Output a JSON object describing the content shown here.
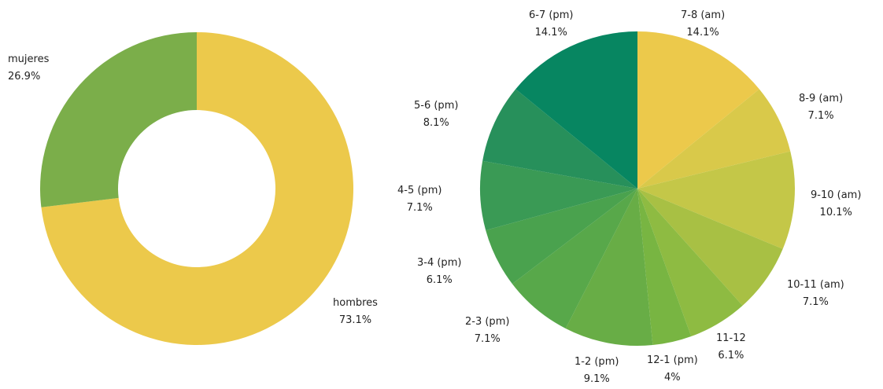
{
  "chart_data": [
    {
      "type": "pie",
      "variant": "donut",
      "slices": [
        {
          "label": "hombres",
          "value_label": "73.1%",
          "value": 73.1,
          "color": "#ecc94b"
        },
        {
          "label": "mujeres",
          "value_label": "26.9%",
          "value": 26.9,
          "color": "#7bae4a"
        }
      ]
    },
    {
      "type": "pie",
      "slices": [
        {
          "label": "7-8 (am)",
          "value_label": "14.1%",
          "value": 14.1,
          "color": "#ecc94b"
        },
        {
          "label": "8-9 (am)",
          "value_label": "7.1%",
          "value": 7.1,
          "color": "#d9c94a"
        },
        {
          "label": "9-10 (am)",
          "value_label": "10.1%",
          "value": 10.1,
          "color": "#c4c748"
        },
        {
          "label": "10-11 (am)",
          "value_label": "7.1%",
          "value": 7.1,
          "color": "#a8c044"
        },
        {
          "label": "11-12",
          "value_label": "6.1%",
          "value": 6.1,
          "color": "#8ebb42"
        },
        {
          "label": "12-1 (pm)",
          "value_label": "4%",
          "value": 4,
          "color": "#78b542"
        },
        {
          "label": "1-2 (pm)",
          "value_label": "9.1%",
          "value": 9.1,
          "color": "#68ad46"
        },
        {
          "label": "2-3 (pm)",
          "value_label": "7.1%",
          "value": 7.1,
          "color": "#58a84a"
        },
        {
          "label": "3-4 (pm)",
          "value_label": "6.1%",
          "value": 6.1,
          "color": "#4aa24e"
        },
        {
          "label": "4-5 (pm)",
          "value_label": "7.1%",
          "value": 7.1,
          "color": "#3a9a55"
        },
        {
          "label": "5-6 (pm)",
          "value_label": "8.1%",
          "value": 8.1,
          "color": "#27905b"
        },
        {
          "label": "6-7 (pm)",
          "value_label": "14.1%",
          "value": 14.1,
          "color": "#078661"
        }
      ]
    }
  ]
}
